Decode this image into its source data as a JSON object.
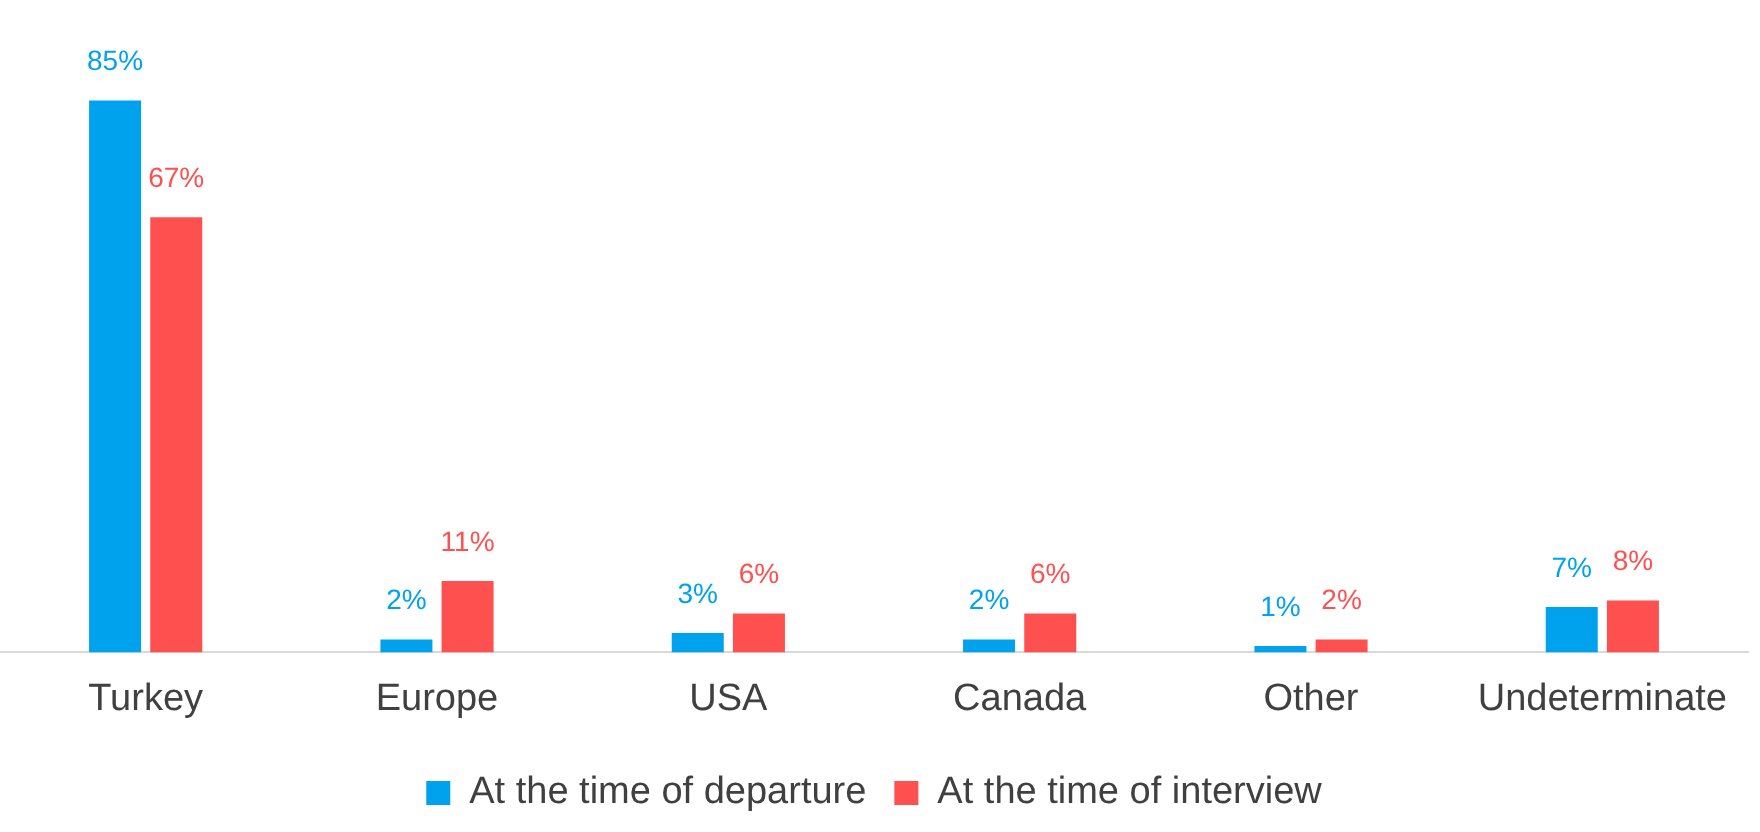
{
  "chart_data": {
    "type": "bar",
    "categories": [
      "Turkey",
      "Europe",
      "USA",
      "Canada",
      "Other",
      "Undeterminate"
    ],
    "series": [
      {
        "name": "At the time of departure",
        "color": "#00a2ed",
        "values": [
          85,
          2,
          3,
          2,
          1,
          7
        ],
        "value_labels": [
          "85%",
          "2%",
          "3%",
          "2%",
          "1%",
          "7%"
        ]
      },
      {
        "name": "At the time of interview",
        "color": "#ff5050",
        "values": [
          67,
          11,
          6,
          6,
          2,
          8
        ],
        "value_labels": [
          "67%",
          "11%",
          "6%",
          "6%",
          "2%",
          "8%"
        ]
      }
    ],
    "legend": "bottom",
    "grid": false
  }
}
